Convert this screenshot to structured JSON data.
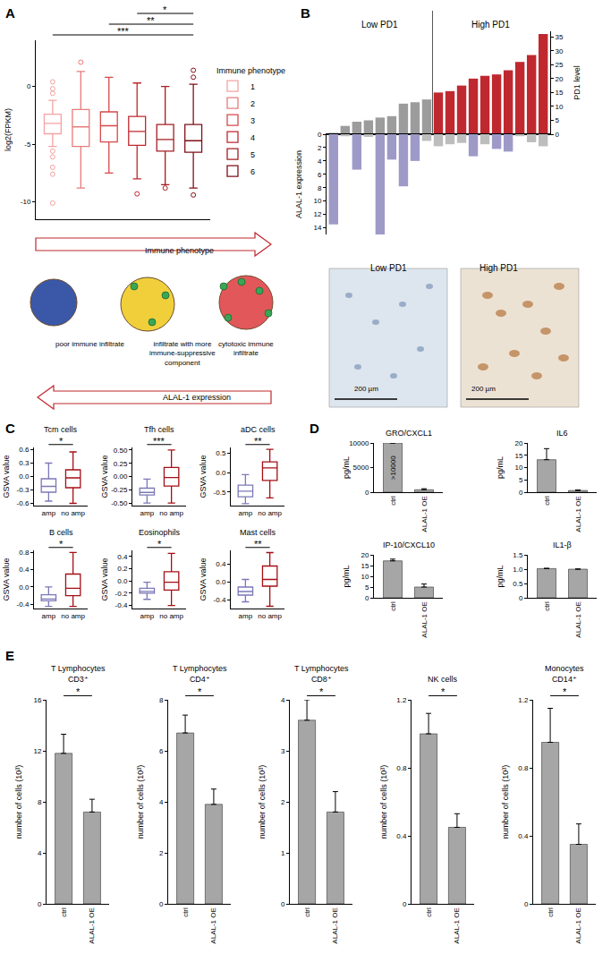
{
  "chart_data": [
    {
      "panel": "A",
      "type": "box",
      "ylabel": "log2(FPKM)",
      "legend_title": "Immune phenotype",
      "legend": "right",
      "tick_labels": "y",
      "ylim": [
        -11.5,
        4
      ],
      "yticks": [
        -10,
        -5,
        0
      ],
      "categories": [
        "1",
        "2",
        "3",
        "4",
        "5",
        "6"
      ],
      "boxes": [
        {
          "color": "#f4a3a3",
          "q1": -4.1,
          "median": -3.2,
          "q3": -2.4,
          "lowerfence": -5.2,
          "upperfence": -1.2,
          "outliers": [
            0.4,
            -0.2,
            -0.6,
            -5.6,
            -6.1,
            -7.0,
            -7.6,
            -10.1
          ]
        },
        {
          "color": "#e77c7c",
          "q1": -5.2,
          "median": -3.5,
          "q3": -2.0,
          "lowerfence": -8.8,
          "upperfence": 1.3,
          "outliers": [
            2.1
          ]
        },
        {
          "color": "#d84a4a",
          "q1": -4.8,
          "median": -3.4,
          "q3": -2.2,
          "lowerfence": -7.5,
          "upperfence": 0.8,
          "outliers": []
        },
        {
          "color": "#c0282f",
          "q1": -5.1,
          "median": -3.9,
          "q3": -2.6,
          "lowerfence": -8.0,
          "upperfence": 0.3,
          "outliers": [
            -9.3
          ]
        },
        {
          "color": "#a51d23",
          "q1": -5.6,
          "median": -4.6,
          "q3": -3.3,
          "lowerfence": -8.5,
          "upperfence": 0.0,
          "outliers": [
            -8.8
          ]
        },
        {
          "color": "#7f1118",
          "q1": -5.7,
          "median": -4.7,
          "q3": -3.3,
          "lowerfence": -8.8,
          "upperfence": 0.2,
          "outliers": [
            0.8,
            1.4,
            -9.4
          ]
        }
      ],
      "significance": [
        {
          "from": "4",
          "to": "6",
          "label": "*"
        },
        {
          "from": "3",
          "to": "6",
          "label": "**"
        },
        {
          "from": "1",
          "to": "6",
          "label": "***"
        }
      ],
      "cartoon": {
        "top_arrow": "Immune phenotype",
        "bottom_arrow": "ALAL-1 expression",
        "labels": [
          [
            "poor immune infiltrate"
          ],
          [
            "infiltrate with more",
            "immune-suppressive",
            "component"
          ],
          [
            "cytotoxic immune",
            "infiltrate"
          ]
        ]
      }
    },
    {
      "panel": "B",
      "type": "bar",
      "ylabel": "ALAL-1 expression",
      "y2label": "PD1 level",
      "tick_labels": "y",
      "ylim": [
        15,
        0
      ],
      "yticks": [
        0,
        2,
        4,
        6,
        8,
        10,
        12,
        14
      ],
      "y2lim": [
        0,
        37
      ],
      "y2ticks": [
        0,
        5,
        10,
        15,
        20,
        25,
        30,
        35
      ],
      "groups": [
        {
          "label": "Low PD1",
          "color": "#9c9c9c",
          "pd1": [
            0.5,
            3,
            4.5,
            5,
            6,
            6.5,
            11,
            11.5,
            12.5
          ],
          "alal1": [
            13.5,
            0.3,
            5.3,
            0.4,
            15,
            3.8,
            7.8,
            4,
            1
          ],
          "alal1_colors": [
            "#9e9ac8",
            "#bdbdbd",
            "#9e9ac8",
            "#bdbdbd",
            "#9e9ac8",
            "#9e9ac8",
            "#9e9ac8",
            "#9e9ac8",
            "#bdbdbd"
          ]
        },
        {
          "label": "High PD1",
          "color": "#c0282f",
          "pd1": [
            15,
            15.5,
            17.5,
            20,
            21,
            21.5,
            23,
            26,
            28.5,
            36
          ],
          "alal1": [
            1.8,
            1.5,
            1.3,
            3.3,
            1.5,
            2.2,
            2.6,
            0.3,
            1.2,
            1.8
          ],
          "alal1_colors": [
            "#bdbdbd",
            "#bdbdbd",
            "#bdbdbd",
            "#9e9ac8",
            "#bdbdbd",
            "#9e9ac8",
            "#9e9ac8",
            "#bdbdbd",
            "#bdbdbd",
            "#bdbdbd"
          ]
        }
      ],
      "images": [
        {
          "label": "Low PD1",
          "scale_bar": "200 µm"
        },
        {
          "label": "High PD1",
          "scale_bar": "200 µm"
        }
      ]
    },
    {
      "panel": "C",
      "type": "box",
      "ylabel": "GSVA value",
      "categories": [
        "amp",
        "no amp"
      ],
      "colors": [
        "#7b78b8",
        "#a50f15"
      ],
      "subplots": [
        {
          "title": "Tcm cells",
          "significance": "*",
          "ylim": [
            -0.65,
            0.65
          ],
          "yticks": [
            -0.6,
            -0.3,
            {
              "value": 0,
              "label": "0.0"
            },
            0.3,
            0.6
          ],
          "boxes": [
            {
              "q1": -0.35,
              "median": -0.22,
              "q3": -0.05,
              "lowerfence": -0.55,
              "upperfence": 0.3
            },
            {
              "q1": -0.25,
              "median": -0.03,
              "q3": 0.15,
              "lowerfence": -0.6,
              "upperfence": 0.55
            }
          ]
        },
        {
          "title": "Tfh cells",
          "significance": "***",
          "ylim": [
            -0.55,
            0.55
          ],
          "yticks": [
            {
              "value": -0.5,
              "label": "-0.50"
            },
            -0.25,
            {
              "value": 0,
              "label": "0.00"
            },
            0.25,
            {
              "value": 0.5,
              "label": "0.50"
            }
          ],
          "boxes": [
            {
              "q1": -0.35,
              "median": -0.3,
              "q3": -0.22,
              "lowerfence": -0.5,
              "upperfence": -0.05
            },
            {
              "q1": -0.18,
              "median": -0.02,
              "q3": 0.17,
              "lowerfence": -0.5,
              "upperfence": 0.5
            }
          ]
        },
        {
          "title": "aDC cells",
          "significance": "**",
          "ylim": [
            -0.85,
            0.65
          ],
          "yticks": [
            -0.5,
            {
              "value": 0,
              "label": "0.0"
            },
            0.5
          ],
          "boxes": [
            {
              "q1": -0.62,
              "median": -0.48,
              "q3": -0.32,
              "lowerfence": -0.8,
              "upperfence": -0.05
            },
            {
              "q1": -0.2,
              "median": 0.12,
              "q3": 0.28,
              "lowerfence": -0.65,
              "upperfence": 0.6
            }
          ]
        },
        {
          "title": "B cells",
          "significance": "*",
          "ylim": [
            -0.5,
            0.85
          ],
          "yticks": [
            -0.4,
            {
              "value": 0,
              "label": "0.0"
            },
            0.4,
            0.8
          ],
          "boxes": [
            {
              "q1": -0.32,
              "median": -0.28,
              "q3": -0.18,
              "lowerfence": -0.45,
              "upperfence": 0.0
            },
            {
              "q1": -0.2,
              "median": -0.03,
              "q3": 0.3,
              "lowerfence": -0.45,
              "upperfence": 0.8
            }
          ]
        },
        {
          "title": "Eosinophils",
          "significance": "*",
          "ylim": [
            -0.45,
            0.5
          ],
          "yticks": [
            -0.4,
            -0.2,
            {
              "value": 0,
              "label": "0.0"
            },
            0.2,
            0.4
          ],
          "boxes": [
            {
              "q1": -0.2,
              "median": -0.17,
              "q3": -0.12,
              "lowerfence": -0.3,
              "upperfence": -0.02
            },
            {
              "q1": -0.15,
              "median": -0.02,
              "q3": 0.15,
              "lowerfence": -0.4,
              "upperfence": 0.45
            }
          ]
        },
        {
          "title": "Mast cells",
          "significance": "**",
          "ylim": [
            -0.6,
            0.7
          ],
          "yticks": [
            -0.4,
            {
              "value": 0,
              "label": "0.0"
            },
            0.4
          ],
          "boxes": [
            {
              "q1": -0.3,
              "median": -0.22,
              "q3": -0.12,
              "lowerfence": -0.45,
              "upperfence": 0.05
            },
            {
              "q1": -0.1,
              "median": 0.05,
              "q3": 0.35,
              "lowerfence": -0.55,
              "upperfence": 0.65
            }
          ]
        }
      ]
    },
    {
      "panel": "D",
      "type": "bar",
      "ylabel": "pg/mL",
      "categories": [
        "ctrl",
        "ALAL-1 OE"
      ],
      "color": "#a6a6a6",
      "subplots": [
        {
          "title": "GRO/CXCL1",
          "ylim": [
            0,
            10000
          ],
          "yticks": [
            0,
            5000,
            10000
          ],
          "values": [
            10000,
            500
          ],
          "value_labels": [
            ">10000",
            null
          ],
          "errors": [
            null,
            200
          ]
        },
        {
          "title": "IL6",
          "ylim": [
            0,
            20
          ],
          "yticks": [
            0,
            5,
            10,
            15,
            20
          ],
          "values": [
            13.2,
            0.7
          ],
          "errors": [
            4.5,
            0.2
          ]
        },
        {
          "title": "IP-10/CXCL10",
          "ylim": [
            0,
            20
          ],
          "yticks": [
            0,
            5,
            10,
            15,
            20
          ],
          "values": [
            17.2,
            5
          ],
          "errors": [
            0.8,
            1.4
          ]
        },
        {
          "title": "IL1-β",
          "ylim": [
            0,
            1.5
          ],
          "yticks": [
            0,
            0.5,
            {
              "value": 1,
              "label": "1.0"
            },
            1.5
          ],
          "values": [
            1.02,
            1.0
          ],
          "errors": [
            0.01,
            0.005
          ]
        }
      ]
    },
    {
      "panel": "E",
      "type": "bar",
      "ylabel": "number of cells (10³)",
      "categories": [
        "ctrl",
        "ALAL-1 OE"
      ],
      "color": "#a6a6a6",
      "subplots": [
        {
          "title": [
            "T Lymphocytes",
            "CD3⁺"
          ],
          "significance": "*",
          "ylim": [
            0,
            16
          ],
          "yticks": [
            0,
            4,
            8,
            12,
            16
          ],
          "values": [
            11.8,
            7.2
          ],
          "errors": [
            1.5,
            1.0
          ]
        },
        {
          "title": [
            "T Lymphocytes",
            "CD4⁺"
          ],
          "significance": "*",
          "ylim": [
            0,
            8
          ],
          "yticks": [
            0,
            2,
            4,
            6,
            8
          ],
          "values": [
            6.7,
            3.9
          ],
          "errors": [
            0.7,
            0.6
          ]
        },
        {
          "title": [
            "T Lymphocytes",
            "CD8⁺"
          ],
          "significance": "*",
          "ylim": [
            0,
            4
          ],
          "yticks": [
            0,
            1,
            2,
            3,
            4
          ],
          "values": [
            3.6,
            1.8
          ],
          "errors": [
            0.4,
            0.4
          ]
        },
        {
          "title": [
            "NK cells"
          ],
          "significance": "*",
          "ylim": [
            0,
            1.2
          ],
          "yticks": [
            0,
            0.4,
            0.8,
            1.2
          ],
          "values": [
            1.0,
            0.45
          ],
          "errors": [
            0.12,
            0.08
          ]
        },
        {
          "title": [
            "Monocytes",
            "CD14⁺"
          ],
          "significance": "*",
          "ylim": [
            0,
            1.2
          ],
          "yticks": [
            0,
            0.4,
            0.8,
            1.2
          ],
          "values": [
            0.95,
            0.35
          ],
          "errors": [
            0.2,
            0.12
          ]
        }
      ]
    }
  ]
}
